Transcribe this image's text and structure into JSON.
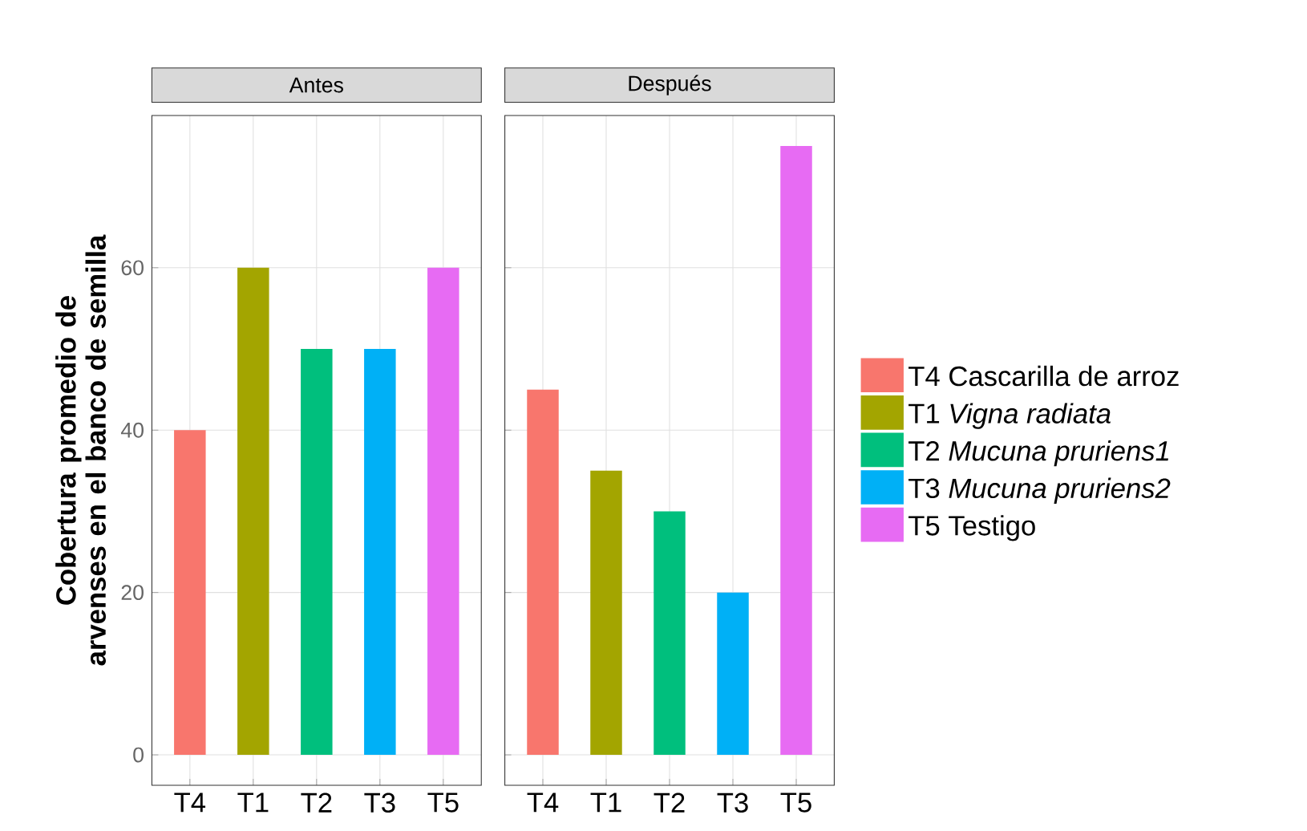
{
  "chart_data": [
    {
      "type": "bar",
      "title": "Antes",
      "ylabel": "Cobertura promedio de arvenses en el banco de semilla",
      "categories": [
        "T4",
        "T1",
        "T2",
        "T3",
        "T5"
      ],
      "ylim": [
        -3.75,
        78.75
      ],
      "yticks": [
        0,
        20,
        40,
        60
      ],
      "grid": true,
      "legend": false,
      "series": [
        {
          "color": "#f8766d",
          "values": [
            40,
            null,
            null,
            null,
            null
          ]
        },
        {
          "color": "#a3a500",
          "values": [
            null,
            60,
            null,
            null,
            null
          ]
        },
        {
          "color": "#00bf7d",
          "values": [
            null,
            null,
            50,
            null,
            null
          ]
        },
        {
          "color": "#00b0f6",
          "values": [
            null,
            null,
            null,
            50,
            null
          ]
        },
        {
          "color": "#e76bf3",
          "values": [
            null,
            null,
            null,
            null,
            60
          ]
        }
      ]
    },
    {
      "type": "bar",
      "title": "Después",
      "categories": [
        "T4",
        "T1",
        "T2",
        "T3",
        "T5"
      ],
      "ylim": [
        -3.75,
        78.75
      ],
      "yticks": [
        0,
        20,
        40,
        60
      ],
      "grid": true,
      "legend": "right",
      "tick_labels": "x",
      "series": [
        {
          "name": "T4 Cascarilla de arroz",
          "color": "#f8766d",
          "values": [
            45,
            null,
            null,
            null,
            null
          ]
        },
        {
          "name": "T1 *Vigna radiata*",
          "color": "#a3a500",
          "values": [
            null,
            35,
            null,
            null,
            null
          ]
        },
        {
          "name": "T2 *Mucuna pruriens1*",
          "color": "#00bf7d",
          "values": [
            null,
            null,
            30,
            null,
            null
          ]
        },
        {
          "name": "T3 *Mucuna pruriens2*",
          "color": "#00b0f6",
          "values": [
            null,
            null,
            null,
            20,
            null
          ]
        },
        {
          "name": "T5 Testigo",
          "color": "#e76bf3",
          "values": [
            null,
            null,
            null,
            null,
            75
          ]
        }
      ]
    }
  ]
}
